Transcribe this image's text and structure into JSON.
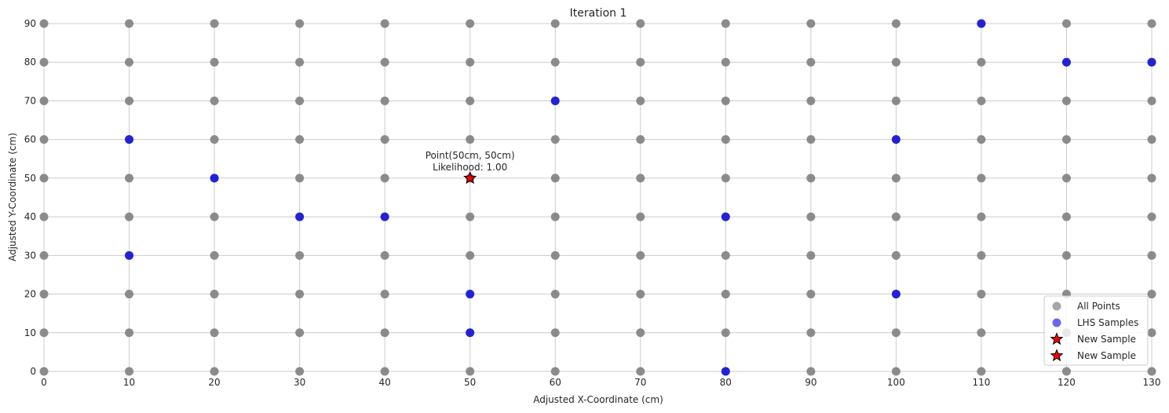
{
  "chart_data": {
    "type": "scatter",
    "title": "Iteration 1",
    "xlabel": "Adjusted X-Coordinate (cm)",
    "ylabel": "Adjusted Y-Coordinate (cm)",
    "xlim": [
      0,
      130
    ],
    "ylim": [
      0,
      90
    ],
    "x_ticks": [
      0,
      10,
      20,
      30,
      40,
      50,
      60,
      70,
      80,
      90,
      100,
      110,
      120,
      130
    ],
    "y_ticks": [
      0,
      10,
      20,
      30,
      40,
      50,
      60,
      70,
      80,
      90
    ],
    "grid": true,
    "legend_position": "bottom-right",
    "series": [
      {
        "name": "All Points",
        "color": "#808080",
        "marker": "circle",
        "grid_x": [
          0,
          10,
          20,
          30,
          40,
          50,
          60,
          70,
          80,
          90,
          100,
          110,
          120,
          130
        ],
        "grid_y": [
          0,
          10,
          20,
          30,
          40,
          50,
          60,
          70,
          80,
          90
        ]
      },
      {
        "name": "LHS Samples",
        "color": "#0000ee",
        "marker": "circle",
        "points": [
          [
            110,
            90
          ],
          [
            120,
            80
          ],
          [
            130,
            80
          ],
          [
            60,
            70
          ],
          [
            10,
            60
          ],
          [
            100,
            60
          ],
          [
            20,
            50
          ],
          [
            30,
            40
          ],
          [
            40,
            40
          ],
          [
            80,
            40
          ],
          [
            10,
            30
          ],
          [
            50,
            20
          ],
          [
            100,
            20
          ],
          [
            50,
            10
          ],
          [
            80,
            0
          ]
        ]
      },
      {
        "name": "New Sample",
        "color": "#ff0000",
        "marker": "star",
        "points": [
          [
            50,
            50
          ]
        ]
      },
      {
        "name": "New Sample",
        "color": "#ff0000",
        "marker": "star",
        "points": [
          [
            50,
            50
          ]
        ]
      }
    ],
    "annotations": [
      {
        "x": 50,
        "y": 50,
        "lines": [
          "Point(50cm, 50cm)",
          "Likelihood: 1.00"
        ]
      }
    ]
  }
}
